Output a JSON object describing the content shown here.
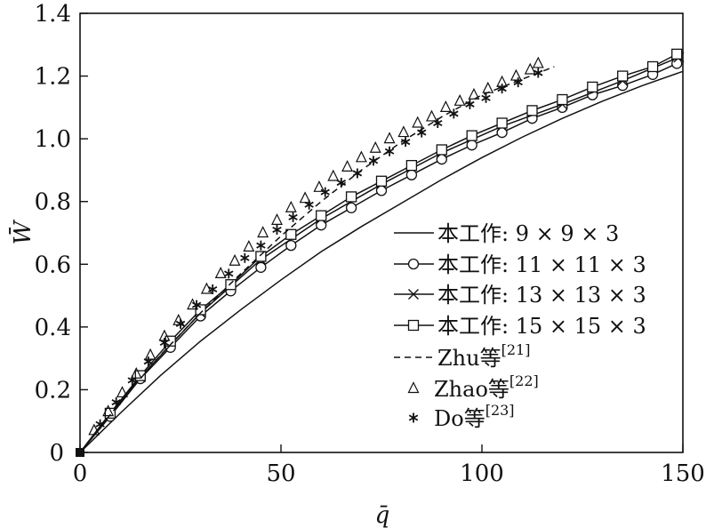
{
  "chart_data": {
    "type": "line",
    "xlabel": "q̄",
    "ylabel": "W̄",
    "xlim": [
      0,
      150
    ],
    "ylim": [
      0,
      1.4
    ],
    "x_ticks": [
      0,
      50,
      100,
      150
    ],
    "x_tick_labels": [
      "0",
      "50",
      "100",
      "150"
    ],
    "y_ticks": [
      0,
      0.2,
      0.4,
      0.6,
      0.8,
      1.0,
      1.2,
      1.4
    ],
    "y_tick_labels": [
      "0",
      "0.2",
      "0.4",
      "0.6",
      "0.8",
      "1.0",
      "1.2",
      "1.4"
    ],
    "legend_position": "lower-right",
    "series": [
      {
        "name": "本工作: 9 × 9 × 3",
        "style": "solid",
        "marker": "none",
        "x": [
          0,
          10,
          20,
          30,
          40,
          50,
          60,
          70,
          80,
          90,
          100,
          110,
          120,
          130,
          140,
          150
        ],
        "y": [
          0,
          0.125,
          0.245,
          0.355,
          0.455,
          0.55,
          0.64,
          0.72,
          0.795,
          0.87,
          0.94,
          1.005,
          1.065,
          1.12,
          1.17,
          1.215
        ]
      },
      {
        "name": "本工作: 11 × 11 × 3",
        "style": "solid",
        "marker": "circle",
        "x": [
          0,
          7.5,
          15,
          22.5,
          30,
          37.5,
          45,
          52.5,
          60,
          67.5,
          75,
          82.5,
          90,
          97.5,
          105,
          112.5,
          120,
          127.5,
          135,
          142.5,
          148.5
        ],
        "y": [
          0,
          0.115,
          0.235,
          0.335,
          0.435,
          0.515,
          0.59,
          0.66,
          0.725,
          0.78,
          0.835,
          0.885,
          0.935,
          0.98,
          1.02,
          1.065,
          1.1,
          1.14,
          1.17,
          1.205,
          1.24
        ]
      },
      {
        "name": "本工作: 13 × 13 × 3",
        "style": "solid",
        "marker": "x",
        "x": [
          0,
          15,
          30,
          45,
          60,
          75,
          90,
          105,
          120,
          135,
          149
        ],
        "y": [
          0,
          0.24,
          0.445,
          0.615,
          0.745,
          0.855,
          0.955,
          1.04,
          1.11,
          1.185,
          1.26
        ]
      },
      {
        "name": "本工作: 15 × 15 × 3",
        "style": "solid",
        "marker": "square",
        "x": [
          0,
          7.5,
          15,
          22.5,
          30,
          37.5,
          45,
          52.5,
          60,
          67.5,
          75,
          82.5,
          90,
          97.5,
          105,
          112.5,
          120,
          127.5,
          135,
          142.5,
          148.5
        ],
        "y": [
          0,
          0.125,
          0.245,
          0.355,
          0.455,
          0.535,
          0.625,
          0.695,
          0.755,
          0.815,
          0.865,
          0.915,
          0.965,
          1.01,
          1.05,
          1.09,
          1.125,
          1.165,
          1.2,
          1.23,
          1.27
        ]
      },
      {
        "name": "Zhu等[21]",
        "style": "dashed",
        "marker": "none",
        "x": [
          0,
          10,
          20,
          30,
          40,
          50,
          60,
          70,
          80,
          90,
          100,
          110,
          118
        ],
        "y": [
          0,
          0.16,
          0.31,
          0.445,
          0.57,
          0.69,
          0.8,
          0.9,
          0.99,
          1.07,
          1.14,
          1.19,
          1.23
        ]
      },
      {
        "name": "Zhao等[22]",
        "style": "none",
        "marker": "triangle",
        "x": [
          3.5,
          7,
          10.5,
          14,
          17.5,
          21,
          24.5,
          28,
          31.5,
          35,
          38.5,
          42,
          45.5,
          49,
          52.5,
          56,
          59.5,
          63,
          66.5,
          70,
          73.5,
          77,
          80.5,
          84,
          87.5,
          91,
          94.5,
          98,
          101.5,
          105,
          108.5,
          112,
          114
        ],
        "y": [
          0.07,
          0.13,
          0.19,
          0.25,
          0.31,
          0.37,
          0.42,
          0.47,
          0.52,
          0.57,
          0.61,
          0.655,
          0.7,
          0.74,
          0.78,
          0.81,
          0.845,
          0.88,
          0.91,
          0.94,
          0.97,
          1.0,
          1.02,
          1.05,
          1.07,
          1.1,
          1.12,
          1.14,
          1.16,
          1.18,
          1.2,
          1.22,
          1.24
        ]
      },
      {
        "name": "Do等[23]",
        "style": "none",
        "marker": "asterisk",
        "x": [
          5,
          9,
          13,
          17,
          21,
          25,
          29,
          33,
          37,
          41,
          45,
          49,
          53,
          57,
          61,
          65,
          69,
          73,
          77,
          81,
          85,
          89,
          93,
          97,
          101,
          105,
          109,
          114
        ],
        "y": [
          0.09,
          0.16,
          0.23,
          0.29,
          0.35,
          0.41,
          0.47,
          0.52,
          0.57,
          0.62,
          0.66,
          0.71,
          0.75,
          0.79,
          0.83,
          0.86,
          0.89,
          0.93,
          0.96,
          0.99,
          1.02,
          1.05,
          1.08,
          1.11,
          1.13,
          1.16,
          1.18,
          1.21
        ]
      }
    ]
  }
}
